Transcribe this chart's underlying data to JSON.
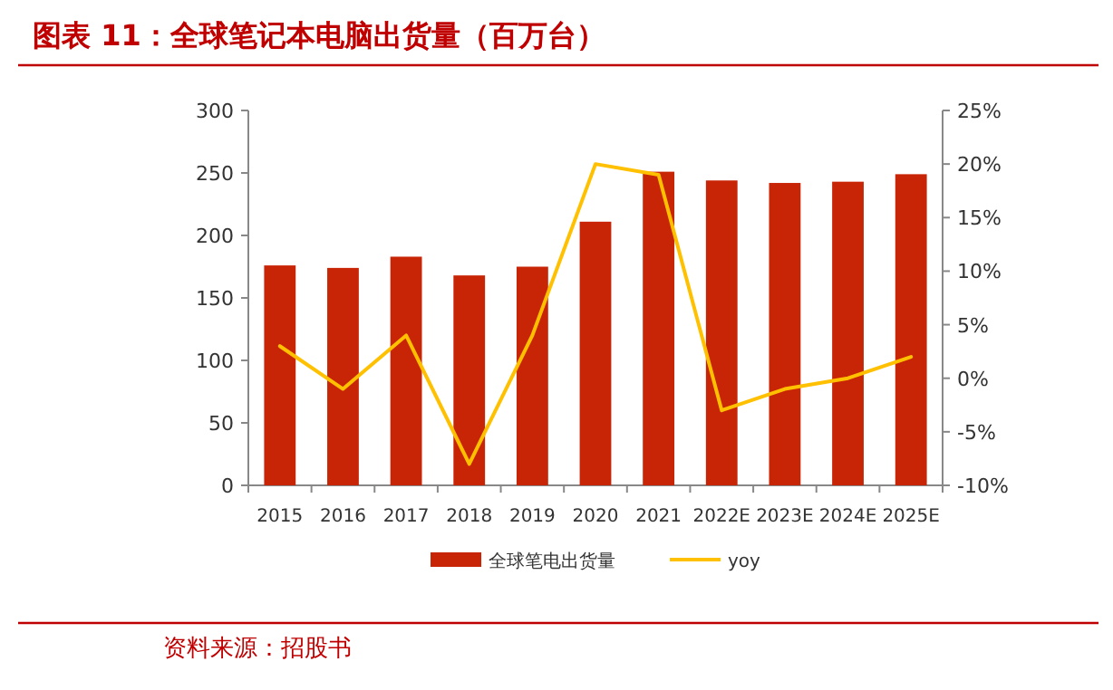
{
  "chart_data": {
    "type": "bar",
    "title": "图表 11：全球笔记本电脑出货量（百万台）",
    "categories": [
      "2015",
      "2016",
      "2017",
      "2018",
      "2019",
      "2020",
      "2021",
      "2022E",
      "2023E",
      "2024E",
      "2025E"
    ],
    "series": [
      {
        "name": "全球笔电出货量",
        "color": "#c82406",
        "values": [
          176,
          174,
          183,
          168,
          175,
          211,
          251,
          244,
          242,
          243,
          249
        ]
      },
      {
        "name": "yoy",
        "type": "line",
        "axis": "y2",
        "color": "#ffc000",
        "values": [
          3,
          -1,
          4,
          -8,
          4,
          20,
          19,
          -3,
          -1,
          0,
          2
        ]
      }
    ],
    "ylim": [
      0,
      300
    ],
    "yticks": [
      0,
      50,
      100,
      150,
      200,
      250,
      300
    ],
    "y2lim": [
      -10,
      25
    ],
    "y2ticks": [
      {
        "value": -10,
        "label": "-10%"
      },
      {
        "value": -5,
        "label": "-5%"
      },
      {
        "value": 0,
        "label": "0%"
      },
      {
        "value": 5,
        "label": "5%"
      },
      {
        "value": 10,
        "label": "10%"
      },
      {
        "value": 15,
        "label": "15%"
      },
      {
        "value": 20,
        "label": "20%"
      },
      {
        "value": 25,
        "label": "25%"
      }
    ],
    "legend": "bottom",
    "annotations": [
      "资料来源：招股书"
    ]
  }
}
